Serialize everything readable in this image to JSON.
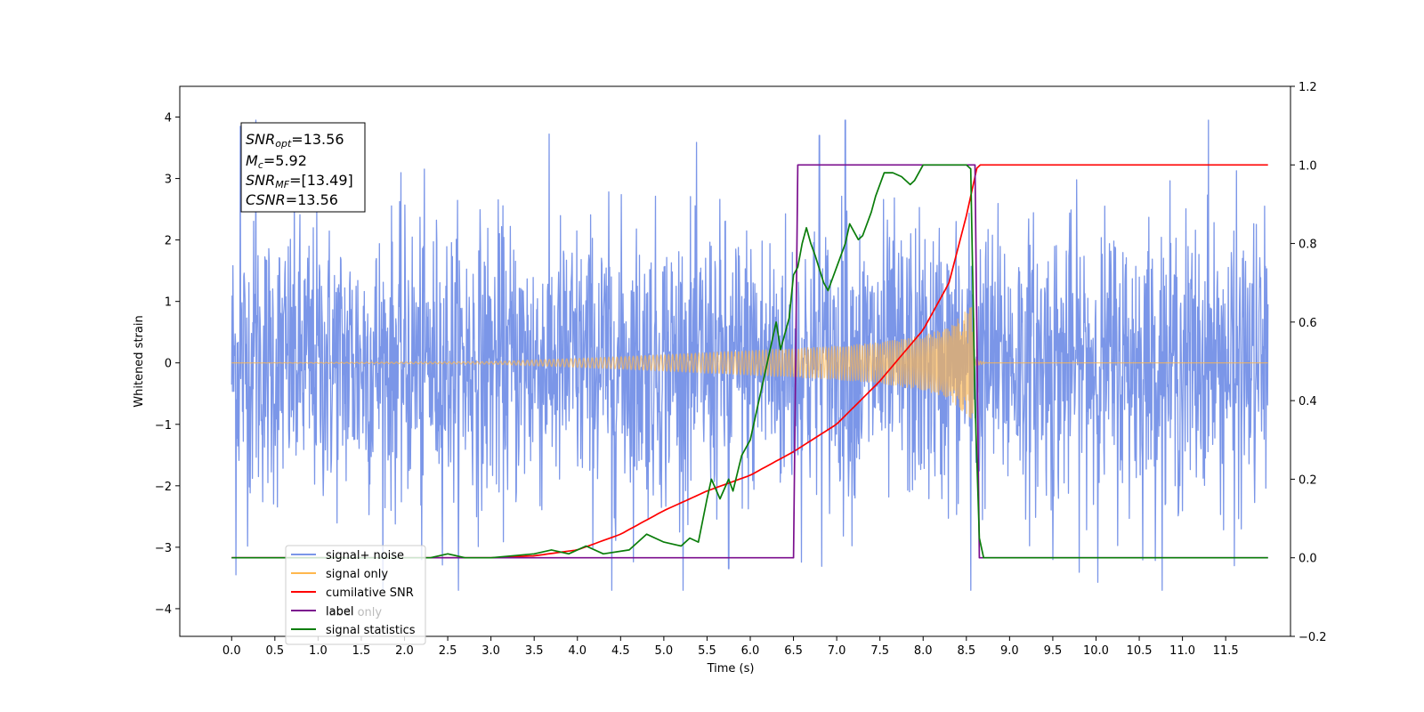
{
  "chart_data": {
    "type": "line",
    "xlabel": "Time (s)",
    "ylabel": "Whitened strain",
    "xlim": [
      -0.6,
      12.25
    ],
    "ylim": [
      -4.45,
      4.5
    ],
    "y2lim": [
      -0.2,
      1.2
    ],
    "xticks": [
      "0.0",
      "0.5",
      "1.0",
      "1.5",
      "2.0",
      "2.5",
      "3.0",
      "3.5",
      "4.0",
      "4.5",
      "5.0",
      "5.5",
      "6.0",
      "6.5",
      "7.0",
      "7.5",
      "8.0",
      "8.5",
      "9.0",
      "9.5",
      "10.0",
      "10.5",
      "11.0",
      "11.5"
    ],
    "yticks": [
      "4",
      "3",
      "2",
      "1",
      "0",
      "−1",
      "−2",
      "−3",
      "−4"
    ],
    "y2ticks": [
      "1.2",
      "1.0",
      "0.8",
      "0.6",
      "0.4",
      "0.2",
      "0.0",
      "−0.2"
    ],
    "grid": false,
    "legend_position": "lower-left",
    "annotation": {
      "snr_opt": {
        "base": "SNR",
        "sub": "opt",
        "value": "=13.56"
      },
      "mc": {
        "base": "M",
        "sub": "c",
        "value": "=5.92"
      },
      "snr_mf": {
        "base": "SNR",
        "sub": "MF",
        "value": "=[13.49]"
      },
      "csnr": {
        "base": "CSNR",
        "value": "=13.56"
      }
    },
    "series": [
      {
        "name": "signal+ noise",
        "axis": "left",
        "color": "#7b96e8",
        "kind": "noise",
        "x_range": [
          0.0,
          11.99
        ],
        "typical_range": [
          -2.5,
          2.5
        ],
        "x_extrema": [
          [
            0.28,
            4.12
          ],
          [
            0.1,
            3.85
          ],
          [
            4.4,
            3.9
          ],
          [
            7.1,
            4.05
          ],
          [
            11.3,
            4.0
          ],
          [
            6.8,
            3.7
          ],
          [
            4.4,
            -3.8
          ],
          [
            0.05,
            -3.45
          ],
          [
            8.55,
            -3.8
          ],
          [
            5.75,
            -3.35
          ],
          [
            11.6,
            -3.3
          ],
          [
            9.5,
            -3.2
          ],
          [
            2.2,
            -3.2
          ]
        ]
      },
      {
        "name": "signal only",
        "axis": "left",
        "color": "#ffb74d",
        "kind": "chirp",
        "x_range": [
          0.0,
          11.99
        ],
        "merge_time": 8.6,
        "envelope": {
          "x": [
            0.0,
            3.0,
            4.5,
            6.0,
            7.0,
            7.5,
            8.0,
            8.3,
            8.5,
            8.6
          ],
          "amp": [
            0.0,
            0.02,
            0.1,
            0.2,
            0.27,
            0.33,
            0.44,
            0.58,
            0.85,
            0.95
          ]
        }
      },
      {
        "name": "cumilative SNR",
        "axis": "right",
        "color": "#ff0000",
        "x": [
          0.0,
          2.0,
          3.0,
          3.5,
          4.0,
          4.5,
          5.0,
          5.5,
          6.0,
          6.5,
          7.0,
          7.5,
          8.0,
          8.3,
          8.5,
          8.62,
          8.63,
          11.99
        ],
        "y": [
          0.0,
          0.0,
          0.0,
          0.005,
          0.02,
          0.06,
          0.12,
          0.17,
          0.21,
          0.27,
          0.34,
          0.45,
          0.58,
          0.7,
          0.87,
          0.99,
          1.0,
          1.0
        ]
      },
      {
        "name": "label",
        "axis": "right",
        "color": "#7b0f8e",
        "x": [
          0.0,
          6.5,
          6.55,
          8.6,
          8.65,
          11.99
        ],
        "y": [
          0.0,
          0.0,
          1.0,
          1.0,
          0.0,
          0.0
        ]
      },
      {
        "name": "signal statistics",
        "axis": "right",
        "color": "#0a7d0a",
        "x": [
          0.0,
          2.3,
          2.5,
          2.7,
          3.0,
          3.5,
          3.7,
          3.9,
          4.1,
          4.3,
          4.6,
          4.8,
          5.0,
          5.2,
          5.3,
          5.4,
          5.5,
          5.55,
          5.65,
          5.75,
          5.8,
          5.9,
          6.0,
          6.1,
          6.15,
          6.2,
          6.3,
          6.35,
          6.45,
          6.5,
          6.55,
          6.6,
          6.65,
          6.7,
          6.75,
          6.85,
          6.9,
          7.0,
          7.1,
          7.15,
          7.25,
          7.3,
          7.4,
          7.45,
          7.55,
          7.65,
          7.75,
          7.85,
          7.9,
          7.95,
          8.0,
          8.05,
          8.1,
          8.2,
          8.3,
          8.4,
          8.5,
          8.55,
          8.6,
          8.65,
          8.7,
          8.8,
          11.99
        ],
        "y": [
          0.0,
          0.0,
          0.01,
          0.0,
          0.0,
          0.01,
          0.02,
          0.01,
          0.03,
          0.01,
          0.02,
          0.06,
          0.04,
          0.03,
          0.05,
          0.04,
          0.15,
          0.2,
          0.15,
          0.2,
          0.17,
          0.26,
          0.3,
          0.4,
          0.45,
          0.5,
          0.6,
          0.53,
          0.61,
          0.72,
          0.74,
          0.8,
          0.84,
          0.8,
          0.77,
          0.7,
          0.68,
          0.74,
          0.8,
          0.85,
          0.81,
          0.82,
          0.88,
          0.92,
          0.98,
          0.98,
          0.97,
          0.95,
          0.96,
          0.98,
          1.0,
          1.0,
          1.0,
          1.0,
          1.0,
          1.0,
          1.0,
          0.99,
          0.4,
          0.05,
          0.0,
          0.0,
          0.0
        ]
      }
    ],
    "legend": [
      "signal+ noise",
      "signal only",
      "cumilative SNR",
      "label",
      "signal statistics"
    ],
    "legend_hidden_text": "label only"
  }
}
